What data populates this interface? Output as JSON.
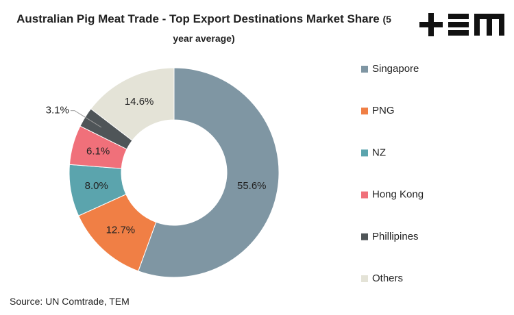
{
  "chart_data": {
    "type": "donut",
    "title": "Australian Pig Meat Trade - Top Export Destinations Market Share",
    "subtitle": "(5 year average)",
    "source": "Source: UN Comtrade, TEM",
    "categories": [
      "Singapore",
      "PNG",
      "NZ",
      "Hong Kong",
      "Phillipines",
      "Others"
    ],
    "values": [
      55.6,
      12.7,
      8.0,
      6.1,
      3.1,
      14.6
    ],
    "value_labels": [
      "55.6%",
      "12.7%",
      "8.0%",
      "6.1%",
      "3.1%",
      "14.6%"
    ],
    "colors": [
      "#7f96a3",
      "#f07f45",
      "#5ba4ad",
      "#f0707a",
      "#4f5558",
      "#e4e3d7"
    ],
    "legend": "right"
  }
}
